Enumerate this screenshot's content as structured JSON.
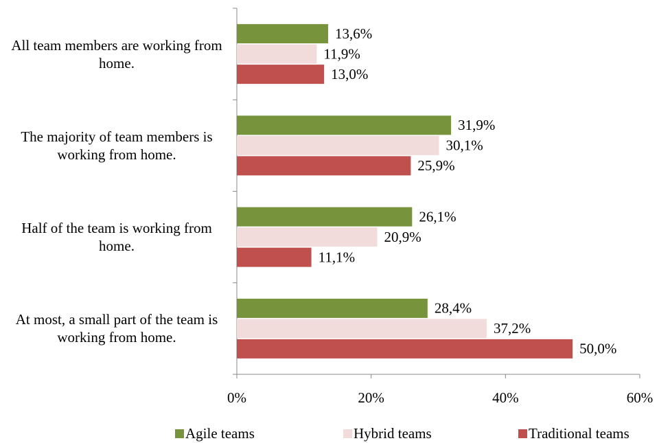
{
  "chart_data": {
    "type": "bar",
    "orientation": "horizontal",
    "categories": [
      "All team members are working from home.",
      "The majority of team members is working from home.",
      "Half of the team is working from home.",
      "At most, a small part of the team is working from home."
    ],
    "series": [
      {
        "name": "Agile teams",
        "color": "#77933c",
        "values": [
          13.6,
          31.9,
          26.1,
          28.4
        ],
        "value_labels": [
          "13,6%",
          "31,9%",
          "26,1%",
          "28,4%"
        ]
      },
      {
        "name": "Hybrid teams",
        "color": "#f2dcdb",
        "values": [
          11.9,
          30.1,
          20.9,
          37.2
        ],
        "value_labels": [
          "11,9%",
          "30,1%",
          "20,9%",
          "37,2%"
        ]
      },
      {
        "name": "Traditional teams",
        "color": "#c0504d",
        "values": [
          13.0,
          25.9,
          11.1,
          50.0
        ],
        "value_labels": [
          "13,0%",
          "25,9%",
          "11,1%",
          "50,0%"
        ]
      }
    ],
    "xlim": [
      0,
      60
    ],
    "xticks": [
      {
        "value": 0,
        "label": "0%"
      },
      {
        "value": 20,
        "label": "20%"
      },
      {
        "value": 40,
        "label": "40%"
      },
      {
        "value": 60,
        "label": "60%"
      }
    ],
    "legend": "bottom"
  }
}
